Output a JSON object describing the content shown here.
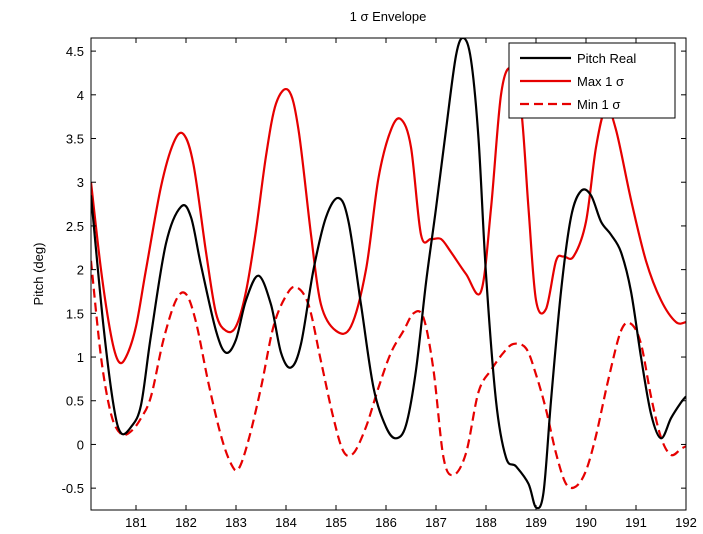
{
  "chart_data": {
    "type": "line",
    "title": "1 σ Envelope",
    "xlabel": "",
    "ylabel": "Pitch (deg)",
    "xlim": [
      180.1,
      192
    ],
    "ylim": [
      -0.75,
      4.65
    ],
    "xticks": [
      181,
      182,
      183,
      184,
      185,
      186,
      187,
      188,
      189,
      190,
      191,
      192
    ],
    "yticks": [
      -0.5,
      0,
      0.5,
      1,
      1.5,
      2,
      2.5,
      3,
      3.5,
      4,
      4.5
    ],
    "ytick_labels": [
      "-0.5",
      "0",
      "0.5",
      "1",
      "1.5",
      "2",
      "2.5",
      "3",
      "3.5",
      "4",
      "4.5"
    ],
    "grid": false,
    "legend_position": "top-right",
    "series": [
      {
        "name": "Pitch Real",
        "color": "#000000",
        "style": "solid",
        "x": [
          180.1,
          180.35,
          180.55,
          180.7,
          180.9,
          181.1,
          181.3,
          181.6,
          181.9,
          182.1,
          182.3,
          182.6,
          182.8,
          183.0,
          183.2,
          183.45,
          183.7,
          183.9,
          184.1,
          184.3,
          184.55,
          184.8,
          185.05,
          185.25,
          185.5,
          185.75,
          186.0,
          186.2,
          186.4,
          186.6,
          186.8,
          187.0,
          187.2,
          187.4,
          187.55,
          187.7,
          187.85,
          188.0,
          188.2,
          188.4,
          188.6,
          188.85,
          189.0,
          189.15,
          189.3,
          189.5,
          189.7,
          189.9,
          190.1,
          190.3,
          190.5,
          190.7,
          190.9,
          191.1,
          191.3,
          191.5,
          191.7,
          191.9,
          192.0
        ],
        "y": [
          2.85,
          1.35,
          0.45,
          0.13,
          0.2,
          0.45,
          1.25,
          2.3,
          2.72,
          2.6,
          2.05,
          1.3,
          1.05,
          1.2,
          1.65,
          1.93,
          1.6,
          1.05,
          0.88,
          1.15,
          2.0,
          2.6,
          2.82,
          2.55,
          1.6,
          0.65,
          0.2,
          0.07,
          0.22,
          0.85,
          1.85,
          2.7,
          3.6,
          4.45,
          4.65,
          4.4,
          3.5,
          1.95,
          0.5,
          -0.15,
          -0.25,
          -0.45,
          -0.72,
          -0.55,
          0.5,
          1.75,
          2.6,
          2.9,
          2.85,
          2.55,
          2.4,
          2.2,
          1.75,
          1.0,
          0.35,
          0.07,
          0.3,
          0.48,
          0.55
        ]
      },
      {
        "name": "Max 1 σ",
        "color": "#e60000",
        "style": "solid",
        "x": [
          180.1,
          180.3,
          180.5,
          180.65,
          180.8,
          181.0,
          181.2,
          181.5,
          181.75,
          181.95,
          182.15,
          182.4,
          182.6,
          182.8,
          183.0,
          183.2,
          183.4,
          183.6,
          183.8,
          184.05,
          184.25,
          184.5,
          184.7,
          185.0,
          185.3,
          185.6,
          185.85,
          186.1,
          186.3,
          186.5,
          186.7,
          186.9,
          187.1,
          187.3,
          187.6,
          187.9,
          188.1,
          188.3,
          188.5,
          188.7,
          188.85,
          189.0,
          189.2,
          189.4,
          189.55,
          189.75,
          190.0,
          190.2,
          190.4,
          190.6,
          190.9,
          191.2,
          191.5,
          191.8,
          192.0
        ],
        "y": [
          3.0,
          2.0,
          1.25,
          0.95,
          1.0,
          1.35,
          2.0,
          2.95,
          3.45,
          3.55,
          3.2,
          2.2,
          1.5,
          1.3,
          1.35,
          1.75,
          2.45,
          3.3,
          3.9,
          4.05,
          3.6,
          2.4,
          1.6,
          1.3,
          1.35,
          2.0,
          3.05,
          3.6,
          3.72,
          3.4,
          2.4,
          2.35,
          2.35,
          2.2,
          1.95,
          1.75,
          2.7,
          4.0,
          4.3,
          3.85,
          2.7,
          1.65,
          1.55,
          2.1,
          2.15,
          2.15,
          2.55,
          3.4,
          3.85,
          3.6,
          2.8,
          2.1,
          1.65,
          1.4,
          1.4
        ]
      },
      {
        "name": "Min 1 σ",
        "color": "#e60000",
        "style": "dashed",
        "x": [
          180.1,
          180.3,
          180.5,
          180.7,
          180.9,
          181.1,
          181.3,
          181.55,
          181.8,
          182.0,
          182.2,
          182.45,
          182.7,
          182.9,
          183.05,
          183.25,
          183.5,
          183.75,
          184.0,
          184.2,
          184.45,
          184.7,
          184.95,
          185.15,
          185.35,
          185.6,
          185.85,
          186.1,
          186.35,
          186.55,
          186.75,
          186.95,
          187.15,
          187.35,
          187.6,
          187.85,
          188.1,
          188.35,
          188.55,
          188.8,
          189.0,
          189.2,
          189.4,
          189.6,
          189.8,
          190.0,
          190.2,
          190.45,
          190.7,
          190.9,
          191.1,
          191.3,
          191.5,
          191.7,
          191.9,
          192.0
        ],
        "y": [
          2.1,
          1.0,
          0.35,
          0.12,
          0.15,
          0.3,
          0.55,
          1.2,
          1.65,
          1.72,
          1.4,
          0.7,
          0.1,
          -0.22,
          -0.28,
          0.05,
          0.65,
          1.35,
          1.7,
          1.8,
          1.6,
          0.95,
          0.3,
          -0.08,
          -0.1,
          0.2,
          0.65,
          1.05,
          1.3,
          1.5,
          1.45,
          0.85,
          -0.15,
          -0.35,
          -0.1,
          0.6,
          0.85,
          1.05,
          1.15,
          1.1,
          0.8,
          0.4,
          -0.1,
          -0.45,
          -0.48,
          -0.3,
          0.1,
          0.75,
          1.3,
          1.38,
          1.15,
          0.55,
          0.08,
          -0.12,
          -0.05,
          -0.02
        ]
      }
    ]
  }
}
